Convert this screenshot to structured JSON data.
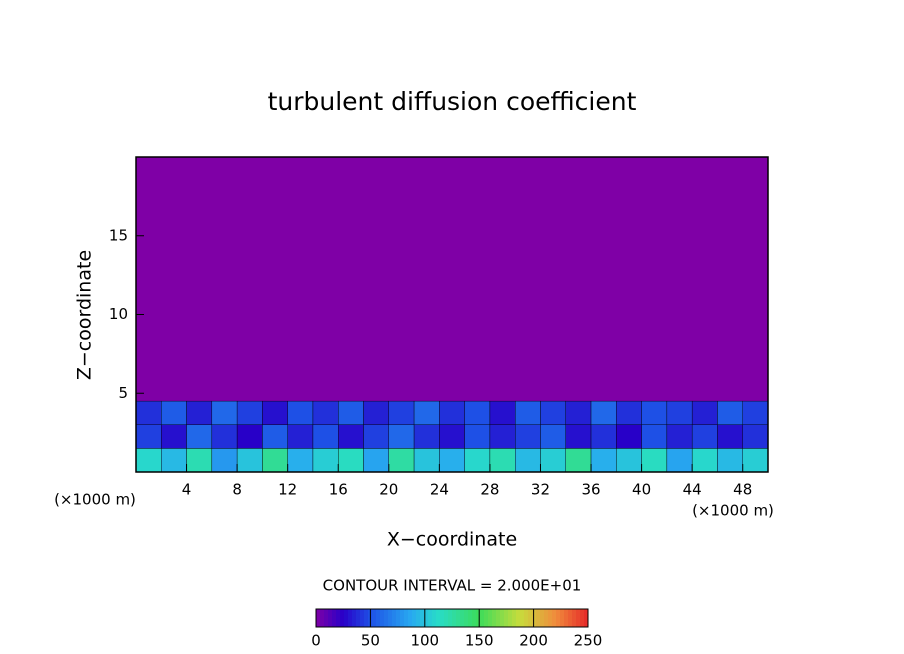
{
  "chart_data": {
    "type": "contour",
    "title": "turbulent diffusion coefficient",
    "x_label": "X−coordinate",
    "y_label": "Z−coordinate",
    "x_unit_left": "(×1000 m)",
    "x_unit_right": "(×1000 m)",
    "contour_interval": "CONTOUR INTERVAL = 2.000E+01",
    "xlim": [
      0,
      50
    ],
    "ylim": [
      0,
      20
    ],
    "xticks": [
      4,
      8,
      12,
      16,
      20,
      24,
      28,
      32,
      36,
      40,
      44,
      48
    ],
    "yticks": [
      5,
      10,
      15
    ],
    "x": [
      1,
      3,
      5,
      7,
      9,
      11,
      13,
      15,
      17,
      19,
      21,
      23,
      25,
      27,
      29,
      31,
      33,
      35,
      37,
      39,
      41,
      43,
      45,
      47,
      49
    ],
    "z": [
      0.75,
      2.25,
      3.75
    ],
    "values": [
      [
        110,
        95,
        120,
        80,
        100,
        130,
        90,
        105,
        115,
        85,
        125,
        100,
        90,
        110,
        120,
        95,
        105,
        130,
        90,
        100,
        115,
        85,
        110,
        95,
        105
      ],
      [
        45,
        30,
        60,
        40,
        25,
        55,
        35,
        50,
        30,
        45,
        60,
        40,
        30,
        50,
        35,
        45,
        55,
        30,
        40,
        25,
        50,
        35,
        45,
        30,
        40
      ],
      [
        40,
        55,
        35,
        60,
        45,
        30,
        50,
        40,
        55,
        35,
        45,
        60,
        40,
        50,
        30,
        55,
        45,
        35,
        60,
        40,
        50,
        45,
        35,
        55,
        45
      ]
    ],
    "clim": [
      0,
      250
    ],
    "cticks": [
      0,
      50,
      100,
      150,
      200,
      250
    ]
  }
}
